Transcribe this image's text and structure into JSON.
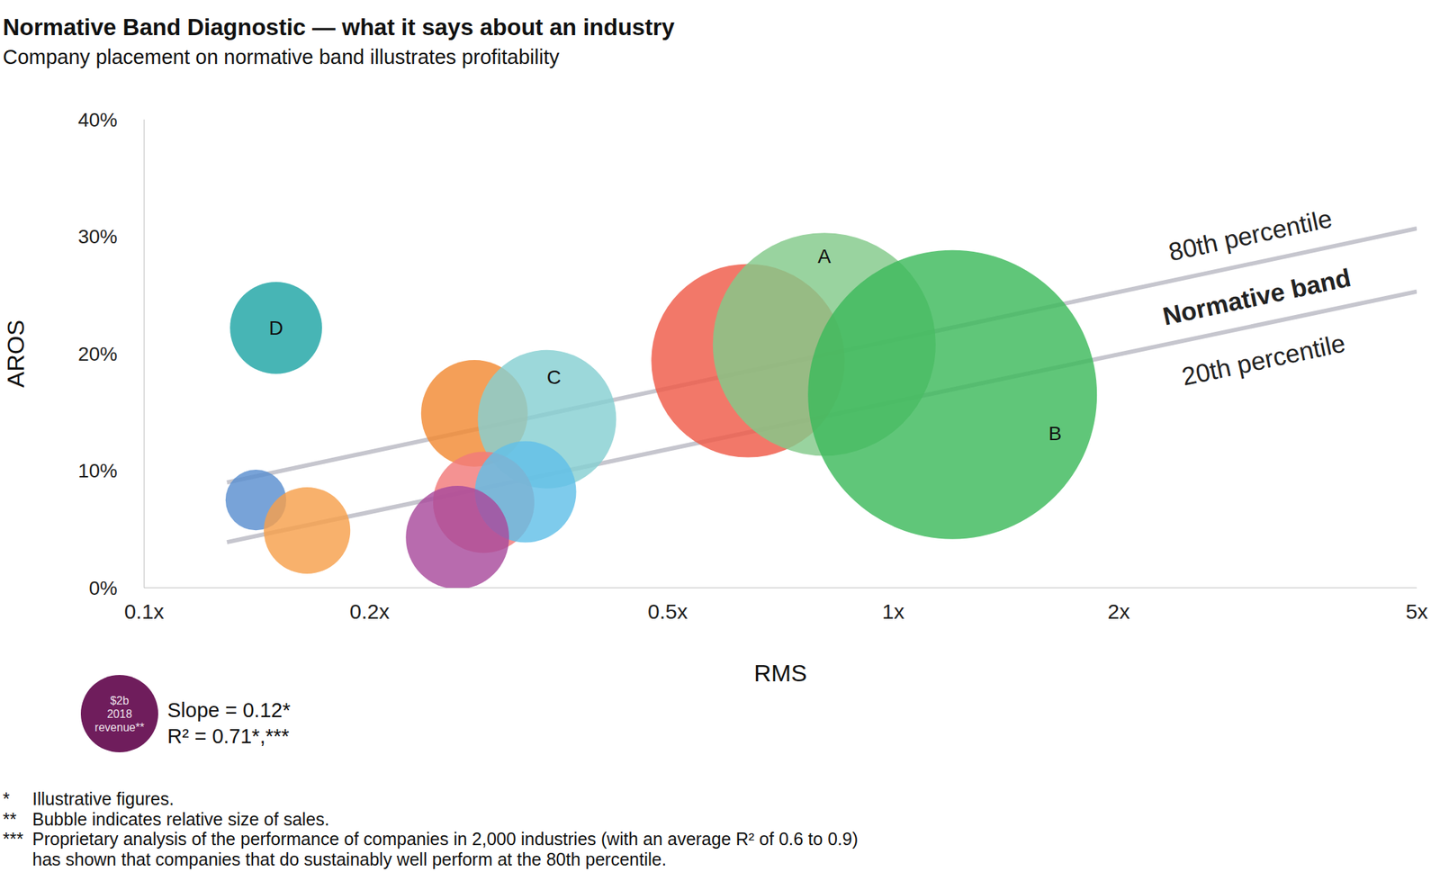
{
  "chart_data": {
    "type": "bubble",
    "title": "Normative Band Diagnostic — what it says about an industry",
    "subtitle": "Company placement on normative band illustrates profitability",
    "x_label": "RMS",
    "y_label": "AROS",
    "log": "x",
    "grid": false,
    "xlim": [
      0.1,
      5
    ],
    "xticks": [
      {
        "value": 0.1,
        "label": "0.1x"
      },
      {
        "value": 0.2,
        "label": "0.2x"
      },
      {
        "value": 0.5,
        "label": "0.5x"
      },
      {
        "value": 1,
        "label": "1x"
      },
      {
        "value": 2,
        "label": "2x"
      },
      {
        "value": 5,
        "label": "5x"
      }
    ],
    "ylim": [
      0,
      40
    ],
    "yticks": [
      {
        "value": 0,
        "label": "0%"
      },
      {
        "value": 10,
        "label": "10%"
      },
      {
        "value": 20,
        "label": "20%"
      },
      {
        "value": 30,
        "label": "30%"
      },
      {
        "value": 40,
        "label": "40%"
      }
    ],
    "x": [
      0.15,
      0.141,
      0.165,
      0.276,
      0.345,
      0.284,
      0.323,
      0.262,
      0.64,
      0.809,
      1.2
    ],
    "values": [
      22.2,
      7.5,
      4.9,
      14.9,
      14.4,
      7.3,
      8.2,
      4.3,
      19.4,
      20.8,
      16.5
    ],
    "size": [
      2.83,
      1.23,
      2.5,
      3.8,
      6.4,
      3.43,
      3.43,
      3.56,
      12.5,
      16.6,
      27.9
    ],
    "colors": [
      "#1fa5a5",
      "#5a8fd0",
      "#f7a04c",
      "#f28a33",
      "#86d0d2",
      "#f17a7a",
      "#62bfe8",
      "#a84b9c",
      "#ef5a48",
      "#83c98a",
      "#3dba5c"
    ],
    "labels": [
      "D",
      null,
      null,
      null,
      "C",
      null,
      null,
      null,
      null,
      "A",
      "B"
    ],
    "size_legend": {
      "value": 2,
      "lines": [
        "$2b",
        "2018",
        "revenue**"
      ],
      "color": "#6f1d5c"
    },
    "bands": [
      {
        "name": "80th percentile",
        "x": [
          0.129,
          5
        ],
        "values": [
          9.0,
          30.7
        ],
        "color": "#c6c6ce"
      },
      {
        "name": "20th percentile",
        "x": [
          0.129,
          5
        ],
        "values": [
          3.9,
          25.3
        ],
        "color": "#c6c6ce"
      }
    ],
    "band_label": "Normative band",
    "annotations": [
      {
        "value": 0.12,
        "label": "Slope = 0.12*"
      },
      {
        "value": 0.71,
        "label": "R² = 0.71*,***"
      }
    ],
    "footnotes": [
      {
        "mark": "*",
        "lines": [
          "Illustrative figures."
        ]
      },
      {
        "mark": "**",
        "lines": [
          "Bubble indicates relative size of sales."
        ]
      },
      {
        "mark": "***",
        "lines": [
          "Proprietary analysis of the performance of companies in 2,000 industries (with an average R² of 0.6 to 0.9)",
          "has shown that companies that do sustainably well perform at the 80th percentile."
        ]
      }
    ]
  }
}
